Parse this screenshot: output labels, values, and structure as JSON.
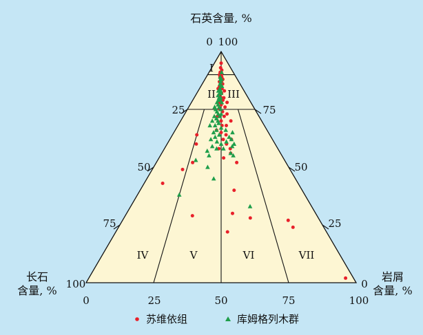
{
  "chart_data": {
    "type": "scatter",
    "subtype": "ternary",
    "axes": {
      "top": {
        "label": "石英含量, %",
        "apex_ticks": [
          "0",
          "100"
        ]
      },
      "left": {
        "label_line1": "长石",
        "label_line2": "含量, %",
        "apex_tick": "100"
      },
      "right": {
        "label_line1": "岩屑",
        "label_line2": "含量, %",
        "apex_tick_a": "0",
        "apex_tick_b": "100"
      }
    },
    "left_edge_ticks": [
      "25",
      "50",
      "75"
    ],
    "right_edge_ticks": [
      "75",
      "50",
      "25"
    ],
    "bottom_ticks": [
      "0",
      "25",
      "50",
      "75"
    ],
    "fields": [
      "I",
      "II",
      "III",
      "IV",
      "V",
      "VI",
      "VII"
    ],
    "series": [
      {
        "name": "苏维依组",
        "marker": "circle",
        "color": "#e8202a",
        "points": [
          [
            95,
            50
          ],
          [
            93,
            47
          ],
          [
            92,
            53
          ],
          [
            91,
            46
          ],
          [
            91,
            50
          ],
          [
            90,
            48
          ],
          [
            90,
            51
          ],
          [
            90,
            44
          ],
          [
            89,
            52
          ],
          [
            89,
            46
          ],
          [
            88,
            49
          ],
          [
            88,
            55
          ],
          [
            87,
            45
          ],
          [
            87,
            51
          ],
          [
            86,
            48
          ],
          [
            86,
            54
          ],
          [
            85,
            50
          ],
          [
            85,
            46
          ],
          [
            84,
            52
          ],
          [
            84,
            43
          ],
          [
            83,
            57
          ],
          [
            83,
            48
          ],
          [
            82,
            51
          ],
          [
            81,
            46
          ],
          [
            80,
            55
          ],
          [
            80,
            50
          ],
          [
            79,
            53
          ],
          [
            78,
            47
          ],
          [
            78,
            60
          ],
          [
            77,
            50
          ],
          [
            76,
            56
          ],
          [
            75,
            48
          ],
          [
            74,
            52
          ],
          [
            73,
            58
          ],
          [
            72,
            45
          ],
          [
            72,
            54
          ],
          [
            70,
            50
          ],
          [
            70,
            62
          ],
          [
            68,
            51
          ],
          [
            68,
            56
          ],
          [
            66,
            45
          ],
          [
            65,
            50
          ],
          [
            64,
            55
          ],
          [
            62,
            60
          ],
          [
            62,
            52
          ],
          [
            60,
            55
          ],
          [
            58,
            48
          ],
          [
            58,
            58
          ],
          [
            56,
            58
          ],
          [
            54,
            52
          ],
          [
            52,
            28
          ],
          [
            49,
            22
          ],
          [
            43,
            12
          ],
          [
            40,
            58
          ],
          [
            30,
            56
          ],
          [
            29,
            35
          ],
          [
            64,
            25
          ],
          [
            60,
            27
          ],
          [
            52,
            62
          ],
          [
            22,
            53
          ],
          [
            27,
            84
          ],
          [
            24,
            85
          ],
          [
            28,
            65
          ],
          [
            2,
            97
          ]
        ]
      },
      {
        "name": "库姆格列木群",
        "marker": "triangle",
        "color": "#1e9e4a",
        "points": [
          [
            91,
            52
          ],
          [
            89,
            47
          ],
          [
            88,
            48
          ],
          [
            88,
            51
          ],
          [
            87,
            49
          ],
          [
            86,
            47
          ],
          [
            85,
            49
          ],
          [
            85,
            52
          ],
          [
            84,
            47
          ],
          [
            83,
            44
          ],
          [
            83,
            49
          ],
          [
            82,
            47
          ],
          [
            82,
            50
          ],
          [
            81,
            44
          ],
          [
            80,
            46
          ],
          [
            80,
            49
          ],
          [
            79,
            45
          ],
          [
            79,
            48
          ],
          [
            78,
            43
          ],
          [
            78,
            51
          ],
          [
            77,
            45
          ],
          [
            76,
            47
          ],
          [
            76,
            40
          ],
          [
            75,
            42
          ],
          [
            75,
            49
          ],
          [
            74,
            44
          ],
          [
            73,
            46
          ],
          [
            73,
            50
          ],
          [
            72,
            41
          ],
          [
            72,
            48
          ],
          [
            71,
            44
          ],
          [
            70,
            39
          ],
          [
            70,
            46
          ],
          [
            69,
            47
          ],
          [
            68,
            43
          ],
          [
            68,
            37
          ],
          [
            67,
            50
          ],
          [
            66,
            45
          ],
          [
            66,
            55
          ],
          [
            65,
            42
          ],
          [
            65,
            62
          ],
          [
            64,
            48
          ],
          [
            63,
            44
          ],
          [
            63,
            58
          ],
          [
            62,
            40
          ],
          [
            62,
            60
          ],
          [
            61,
            46
          ],
          [
            61,
            55
          ],
          [
            60,
            50
          ],
          [
            60,
            62
          ],
          [
            59,
            42
          ],
          [
            59,
            60
          ],
          [
            58,
            46
          ],
          [
            58,
            52
          ],
          [
            57,
            38
          ],
          [
            56,
            58
          ],
          [
            55,
            40
          ],
          [
            55,
            60
          ],
          [
            53,
            30
          ],
          [
            50,
            40
          ],
          [
            45,
            45
          ],
          [
            38,
            25
          ],
          [
            33,
            66
          ]
        ]
      }
    ]
  }
}
